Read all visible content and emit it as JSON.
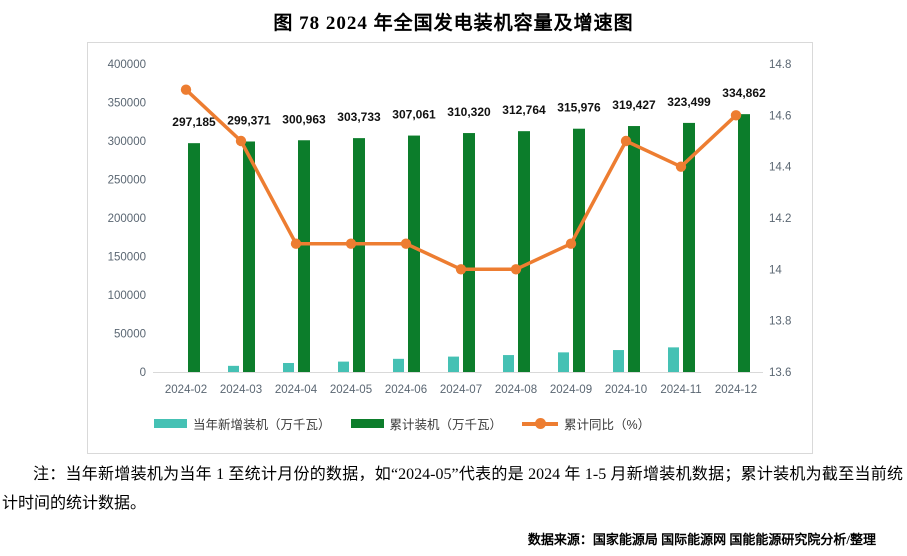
{
  "title": "图 78 2024 年全国发电装机容量及增速图",
  "chart_data": {
    "type": "combo-bar-line",
    "categories": [
      "2024-02",
      "2024-03",
      "2024-04",
      "2024-05",
      "2024-06",
      "2024-07",
      "2024-08",
      "2024-09",
      "2024-10",
      "2024-11",
      "2024-12"
    ],
    "series": [
      {
        "name": "当年新增装机（万千瓦）",
        "type": "bar",
        "axis": "left",
        "color": "#45C1B4",
        "values": [
          null,
          8000,
          11700,
          13500,
          17100,
          20000,
          22000,
          25500,
          28500,
          32000,
          null
        ]
      },
      {
        "name": "累计装机（万千瓦）",
        "type": "bar",
        "axis": "left",
        "color": "#0C7D2B",
        "values": [
          297185,
          299371,
          300963,
          303733,
          307061,
          310320,
          312764,
          315976,
          319427,
          323499,
          334862
        ],
        "labels": [
          "297,185",
          "299,371",
          "300,963",
          "303,733",
          "307,061",
          "310,320",
          "312,764",
          "315,976",
          "319,427",
          "323,499",
          "334,862"
        ]
      },
      {
        "name": "累计同比（%）",
        "type": "line",
        "axis": "right",
        "color": "#ED7D31",
        "values": [
          14.7,
          14.5,
          14.1,
          14.1,
          14.1,
          14.0,
          14.0,
          14.1,
          14.5,
          14.4,
          14.6
        ]
      }
    ],
    "left_axis": {
      "min": 0,
      "max": 400000,
      "step": 50000,
      "ticks": [
        400000,
        350000,
        300000,
        250000,
        200000,
        150000,
        100000,
        50000,
        0
      ]
    },
    "right_axis": {
      "min": 13.6,
      "max": 14.8,
      "step": 0.2,
      "ticks": [
        14.8,
        14.6,
        14.4,
        14.2,
        14,
        13.8,
        13.6
      ]
    },
    "grid": false,
    "legend_position": "bottom",
    "text_color": "#5a6672"
  },
  "note": {
    "text": "注：当年新增装机为当年 1 至统计月份的数据，如“2024-05”代表的是 2024 年 1-5 月新增装机数据；累计装机为截至当前统计时间的统计数据。"
  },
  "source": {
    "text": "数据来源：国家能源局 国际能源网 国能能源研究院分析/整理"
  }
}
